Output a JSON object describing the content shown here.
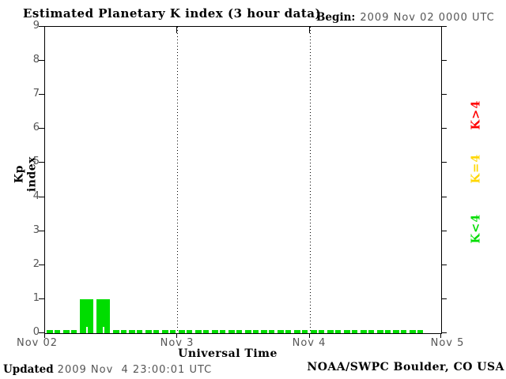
{
  "title": "Estimated Planetary K index (3 hour data)",
  "begin": {
    "label": "Begin:",
    "value": "2009 Nov 02 0000 UTC"
  },
  "footer": {
    "updated_label": "Updated",
    "updated_value": "2009 Nov  4 23:00:01 UTC",
    "credit": "NOAA/SWPC Boulder, CO USA"
  },
  "colors": {
    "bar_green": "#00dd00",
    "legend_yellow": "#ffd700",
    "legend_red": "#ff0000",
    "axis_text_gray": "#555555",
    "frame_black": "#000000"
  },
  "chart_data": {
    "type": "bar",
    "title": "Estimated Planetary K index (3 hour data)",
    "xlabel": "Universal Time",
    "ylabel": "Kp index",
    "ylim": [
      0,
      9
    ],
    "yticks": [
      0,
      1,
      2,
      3,
      4,
      5,
      6,
      7,
      8,
      9
    ],
    "xticklabels": [
      "Nov 02",
      "Nov 3",
      "Nov 4",
      "Nov 5"
    ],
    "begin_time": "2009 Nov 02 0000 UTC",
    "interval_hours": 3,
    "values": [
      0,
      0,
      1,
      1,
      0,
      0,
      0,
      0,
      0,
      0,
      0,
      0,
      0,
      0,
      0,
      0,
      0,
      0,
      0,
      0,
      0,
      0,
      0
    ],
    "bar_color": "#00dd00",
    "gridlines": "vertical dotted lines at day boundaries (Nov 3, Nov 4)",
    "legend_position": "right, rotated 90deg, reading bottom-to-top",
    "legend": [
      {
        "label": "K>4",
        "color": "#ff0000"
      },
      {
        "label": "K=4",
        "color": "#ffd700"
      },
      {
        "label": "K<4",
        "color": "#00dd00"
      }
    ]
  }
}
